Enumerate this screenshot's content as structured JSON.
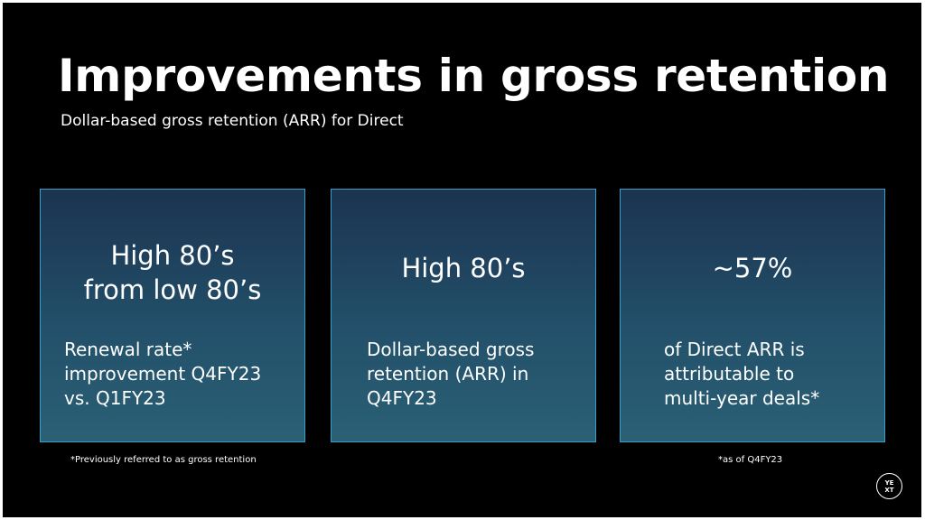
{
  "slide": {
    "title": "Improvements in gross retention",
    "subtitle": "Dollar-based gross retention (ARR) for Direct",
    "cards": [
      {
        "headline": "High 80’s\nfrom low 80’s",
        "description": "Renewal rate*\nimprovement Q4FY23\nvs. Q1FY23"
      },
      {
        "headline": "High 80’s",
        "description": "Dollar-based gross\nretention (ARR) in\nQ4FY23"
      },
      {
        "headline": "~57%",
        "description": "of Direct ARR is\nattributable to\nmulti-year deals*"
      }
    ],
    "footnote_left": "*Previously referred to as gross retention",
    "footnote_right": "*as of Q4FY23",
    "logo_text": "YE\nXT"
  },
  "colors": {
    "background": "#000000",
    "card_border": "#3a9fc7",
    "card_top": "#1b3350",
    "card_bottom": "#2a6075",
    "text": "#ffffff"
  }
}
